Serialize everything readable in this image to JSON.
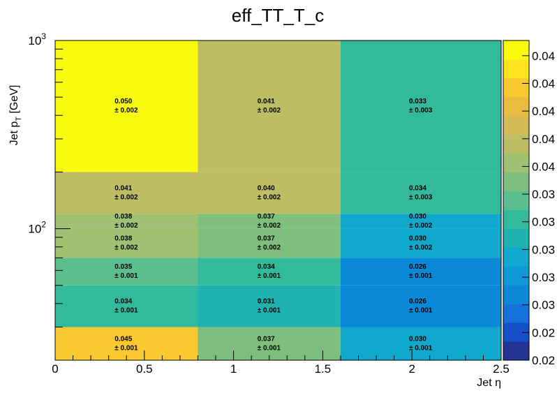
{
  "chart_data": {
    "type": "heatmap",
    "title": "eff_TT_T_c",
    "xlabel_main": "Jet ",
    "xlabel_symbol": "η",
    "ylabel_main": "Jet p",
    "ylabel_sub": "T",
    "ylabel_unit": " [GeV]",
    "x_edges": [
      0,
      0.8,
      1.6,
      2.5
    ],
    "y_edges": [
      20,
      30,
      50,
      70,
      100,
      120,
      200,
      1000
    ],
    "xlim": [
      0,
      2.5
    ],
    "ylim": [
      20,
      1000
    ],
    "y_scale": "log",
    "x_tick_labels": [
      "0",
      "0.5",
      "1",
      "1.5",
      "2",
      "2.5"
    ],
    "y_tick_labels": [
      {
        "base": "10",
        "exp": "2"
      },
      {
        "base": "10",
        "exp": "3"
      }
    ],
    "values": [
      [
        0.045,
        0.037,
        0.03
      ],
      [
        0.034,
        0.031,
        0.026
      ],
      [
        0.035,
        0.034,
        0.026
      ],
      [
        0.038,
        0.037,
        0.03
      ],
      [
        0.038,
        0.037,
        0.03
      ],
      [
        0.041,
        0.04,
        0.034
      ],
      [
        0.05,
        0.041,
        0.033
      ]
    ],
    "value_labels": [
      [
        "0.045",
        "0.037",
        "0.030"
      ],
      [
        "0.034",
        "0.031",
        "0.026"
      ],
      [
        "0.035",
        "0.034",
        "0.026"
      ],
      [
        "0.038",
        "0.037",
        "0.030"
      ],
      [
        "0.038",
        "0.037",
        "0.030"
      ],
      [
        "0.041",
        "0.040",
        "0.034"
      ],
      [
        "0.050",
        "0.041",
        "0.033"
      ]
    ],
    "error_labels": [
      [
        "± 0.001",
        "± 0.001",
        "± 0.001"
      ],
      [
        "± 0.001",
        "± 0.001",
        "± 0.001"
      ],
      [
        "± 0.001",
        "± 0.001",
        "± 0.001"
      ],
      [
        "± 0.002",
        "± 0.002",
        "± 0.002"
      ],
      [
        "± 0.002",
        "± 0.002",
        "± 0.002"
      ],
      [
        "± 0.002",
        "± 0.002",
        "± 0.003"
      ],
      [
        "± 0.002",
        "± 0.002",
        "± 0.003"
      ]
    ],
    "colorbar": {
      "zlim": [
        0.02,
        0.05
      ],
      "tick_labels": [
        "0.02",
        "0.02",
        "0.03",
        "0.03",
        "0.03",
        "0.03",
        "0.03",
        "0.04",
        "0.04",
        "0.04",
        "0.04",
        "0.04"
      ],
      "palette": [
        "#253494",
        "#1650c8",
        "#1672d8",
        "#0b88d8",
        "#0f98d6",
        "#10a8cc",
        "#1fb2b0",
        "#33ba9c",
        "#5cbe8e",
        "#7fbf7e",
        "#9ec173",
        "#bcbd65",
        "#d4bb56",
        "#e9bc40",
        "#fac830",
        "#fce320",
        "#f9fb0e"
      ]
    },
    "grid": false,
    "legend": "none"
  }
}
